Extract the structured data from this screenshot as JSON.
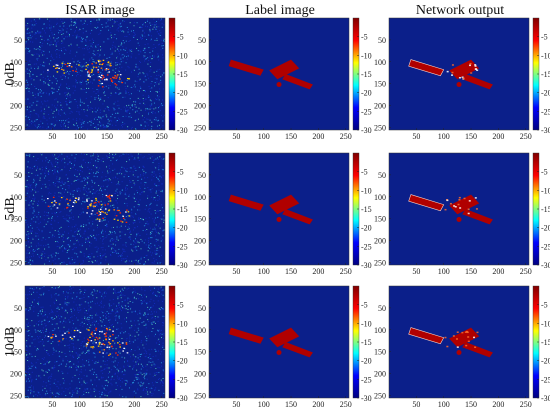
{
  "columns": [
    "ISAR image",
    "Label image",
    "Network output"
  ],
  "rows": [
    "0dB",
    "5dB",
    "10dB"
  ],
  "x_ticks": [
    "50",
    "100",
    "150",
    "200",
    "250"
  ],
  "y_ticks": [
    "50",
    "100",
    "150",
    "200",
    "250"
  ],
  "colorbar_ticks": [
    "-5",
    "-10",
    "-15",
    "-20",
    "-25",
    "-30"
  ],
  "chart_data": {
    "type": "heatmap",
    "image_size": [
      256,
      256
    ],
    "x_ticks": [
      50,
      100,
      150,
      200,
      250
    ],
    "y_ticks": [
      50,
      100,
      150,
      200,
      250
    ],
    "colorbar": {
      "range_db": [
        -30,
        0
      ],
      "ticks": [
        -5,
        -10,
        -15,
        -20,
        -25,
        -30
      ],
      "colormap": "jet"
    },
    "panels": [
      {
        "row": "0dB",
        "column": "ISAR image"
      },
      {
        "row": "0dB",
        "column": "Label image"
      },
      {
        "row": "0dB",
        "column": "Network output"
      },
      {
        "row": "5dB",
        "column": "ISAR image"
      },
      {
        "row": "5dB",
        "column": "Label image"
      },
      {
        "row": "5dB",
        "column": "Network output"
      },
      {
        "row": "10dB",
        "column": "ISAR image"
      },
      {
        "row": "10dB",
        "column": "Label image"
      },
      {
        "row": "10dB",
        "column": "Network output"
      }
    ]
  },
  "colors": {
    "background": "#0b1f8a",
    "noise_low": "#1530c8",
    "noise_mid": "#2aa6e8",
    "noise_high": "#5fe0c0",
    "target": "#b00000",
    "target_bright": "#ff6a2a",
    "highlight": "#ffffff",
    "colorbar_stops": [
      "#000080",
      "#0000ff",
      "#00ffff",
      "#ffff00",
      "#ff0000",
      "#800000"
    ]
  }
}
